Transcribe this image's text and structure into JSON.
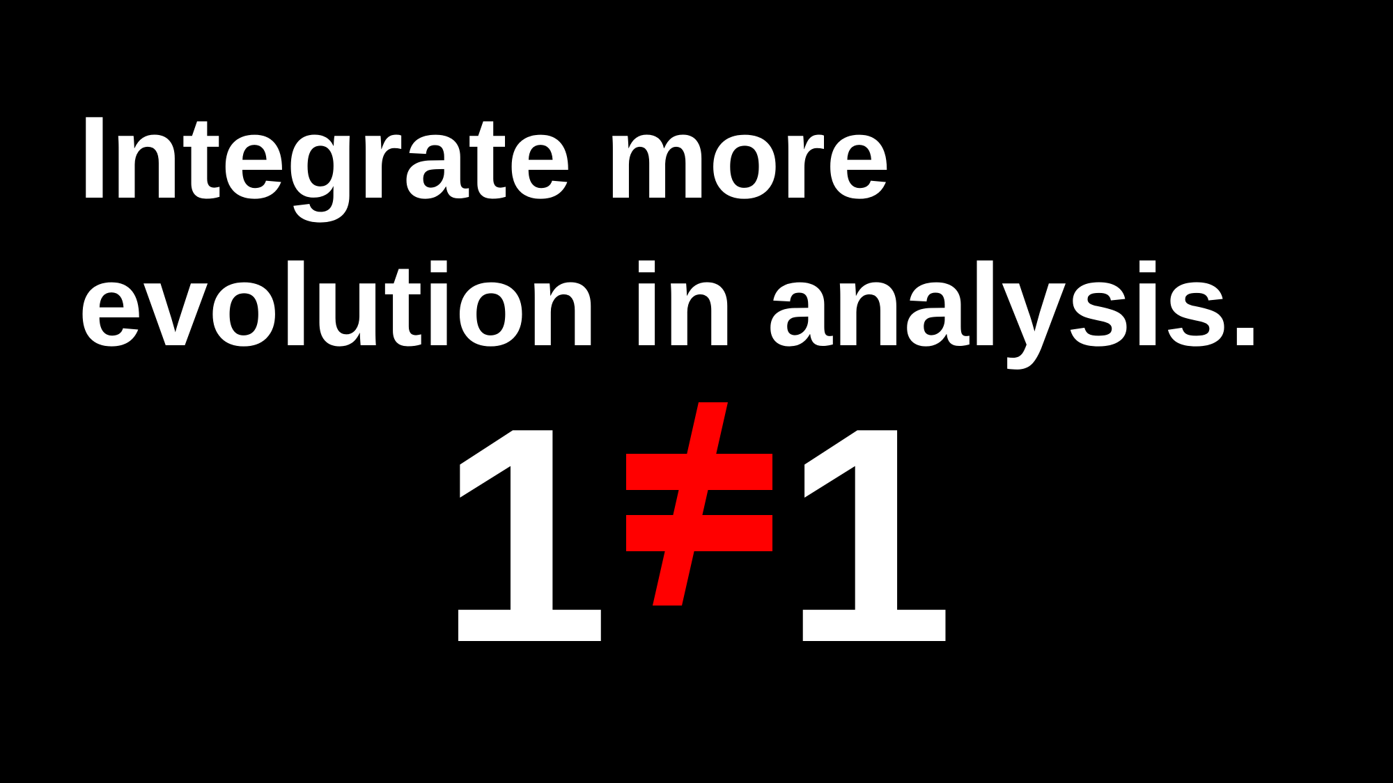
{
  "slide": {
    "headline_line1": "Integrate more",
    "headline_line2": "evolution in analysis.",
    "equation": {
      "left": "1",
      "operator": "≠",
      "right": "1"
    }
  },
  "colors": {
    "background": "#000000",
    "text": "#ffffff",
    "operator": "#ff0000"
  }
}
